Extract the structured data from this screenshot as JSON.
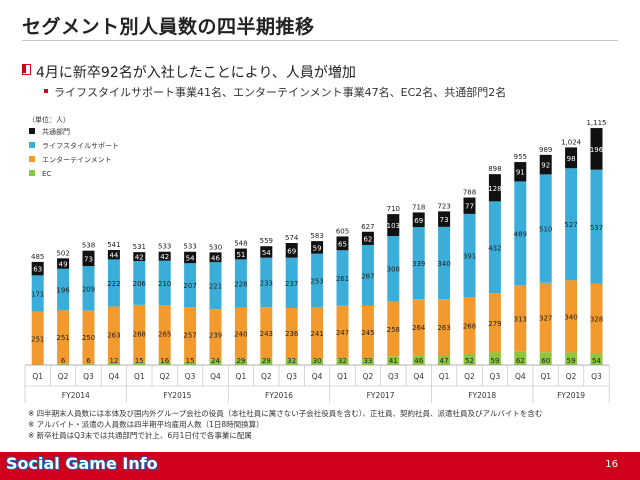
{
  "title": "セグメント別人員数の四半期推移",
  "bullet_main": "4月に新卒92名が入社したことにより、人員が増加",
  "bullet_sub": "ライフスタイルサポート事業41名、エンターテインメント事業47名、EC2名、共通部門2名",
  "footnotes": [
    "※ 四半期末人員数には本体及び国内外グループ会社の役員（本社社員に属さない子会社役員を含む）、正社員、契約社員、派遣社員及びアルバイトを含む",
    "※ アルバイト・派遣の人員数は四半期平均雇用人数（1日8時間換算）",
    "※ 新卒社員はQ3末では共通部門で計上、6月1日付で各事業に配属"
  ],
  "footer": {
    "logo": "Social Game Info",
    "page": "16"
  },
  "colors": {
    "common": "#111111",
    "lifestyle": "#3aaed8",
    "entertainment": "#f29a2e",
    "ec": "#8cc63f",
    "accent": "#d0021b"
  },
  "chart_data": {
    "type": "bar",
    "stacked": true,
    "unit_label": "（単位：人）",
    "categories": [
      "Q1",
      "Q2",
      "Q3",
      "Q4",
      "Q1",
      "Q2",
      "Q3",
      "Q4",
      "Q1",
      "Q2",
      "Q3",
      "Q4",
      "Q1",
      "Q2",
      "Q3",
      "Q4",
      "Q1",
      "Q2",
      "Q3",
      "Q4",
      "Q1",
      "Q2",
      "Q3"
    ],
    "fiscal_years": [
      {
        "label": "FY2014",
        "count": 4
      },
      {
        "label": "FY2015",
        "count": 4
      },
      {
        "label": "FY2016",
        "count": 4
      },
      {
        "label": "FY2017",
        "count": 4
      },
      {
        "label": "FY2018",
        "count": 4
      },
      {
        "label": "FY2019",
        "count": 3
      }
    ],
    "series": [
      {
        "name": "EC",
        "key": "ec",
        "values": [
          0,
          6,
          6,
          12,
          15,
          16,
          15,
          24,
          29,
          29,
          32,
          30,
          32,
          33,
          41,
          46,
          47,
          52,
          59,
          62,
          60,
          59,
          54
        ]
      },
      {
        "name": "エンターテインメント",
        "key": "entertainment",
        "values": [
          251,
          251,
          250,
          263,
          268,
          265,
          257,
          239,
          240,
          243,
          236,
          241,
          247,
          245,
          258,
          264,
          263,
          268,
          279,
          313,
          327,
          340,
          328
        ]
      },
      {
        "name": "ライフスタイルサポート",
        "key": "lifestyle",
        "values": [
          171,
          196,
          209,
          222,
          206,
          210,
          207,
          221,
          228,
          233,
          237,
          253,
          261,
          287,
          308,
          339,
          340,
          391,
          432,
          489,
          510,
          527,
          537
        ]
      },
      {
        "name": "共通部門",
        "key": "common",
        "values": [
          63,
          49,
          73,
          44,
          42,
          42,
          54,
          46,
          51,
          54,
          69,
          59,
          65,
          62,
          103,
          69,
          73,
          77,
          128,
          91,
          92,
          98,
          196
        ]
      }
    ],
    "ec_value_labels": [
      "",
      "6",
      "6",
      "12",
      "15",
      "16",
      "15",
      "24",
      "29",
      "29",
      "32",
      "30",
      "32",
      "33",
      "41",
      "46",
      "47",
      "52",
      "59",
      "62",
      "60",
      "59",
      "54"
    ],
    "totals": [
      485,
      502,
      538,
      541,
      531,
      533,
      533,
      530,
      548,
      559,
      574,
      583,
      605,
      627,
      710,
      718,
      723,
      788,
      898,
      955,
      989,
      1024,
      1115
    ],
    "total_labels": [
      "485",
      "502",
      "538",
      "541",
      "531",
      "533",
      "533",
      "530",
      "548",
      "559",
      "574",
      "583",
      "605",
      "627",
      "710",
      "718",
      "723",
      "788",
      "898",
      "955",
      "989",
      "1,024",
      "1,115"
    ],
    "legend_order": [
      "共通部門",
      "ライフスタイルサポート",
      "エンターテインメント",
      "EC"
    ],
    "legend_position": "top-left",
    "ylim": [
      0,
      1150
    ],
    "grid": false
  }
}
